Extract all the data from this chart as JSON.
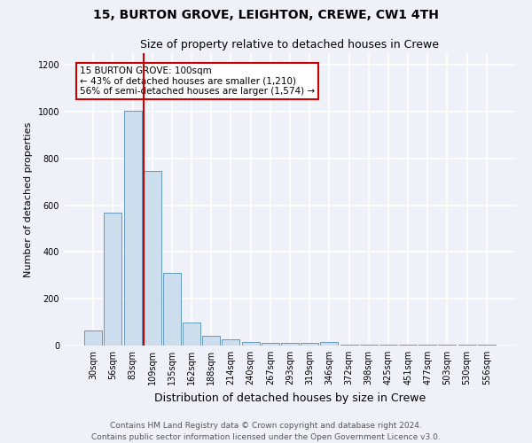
{
  "title1": "15, BURTON GROVE, LEIGHTON, CREWE, CW1 4TH",
  "title2": "Size of property relative to detached houses in Crewe",
  "xlabel": "Distribution of detached houses by size in Crewe",
  "ylabel": "Number of detached properties",
  "categories": [
    "30sqm",
    "56sqm",
    "83sqm",
    "109sqm",
    "135sqm",
    "162sqm",
    "188sqm",
    "214sqm",
    "240sqm",
    "267sqm",
    "293sqm",
    "319sqm",
    "346sqm",
    "372sqm",
    "398sqm",
    "425sqm",
    "451sqm",
    "477sqm",
    "503sqm",
    "530sqm",
    "556sqm"
  ],
  "values": [
    65,
    570,
    1005,
    745,
    310,
    100,
    40,
    25,
    15,
    10,
    10,
    10,
    15,
    5,
    5,
    5,
    5,
    5,
    5,
    5,
    5
  ],
  "bar_color": "#ccdded",
  "bar_edge_color": "#6699bb",
  "red_line_index": 3,
  "marker_color": "#cc0000",
  "annotation_text": "15 BURTON GROVE: 100sqm\n← 43% of detached houses are smaller (1,210)\n56% of semi-detached houses are larger (1,574) →",
  "annotation_box_color": "#ffffff",
  "annotation_box_edge": "#cc0000",
  "ylim": [
    0,
    1250
  ],
  "yticks": [
    0,
    200,
    400,
    600,
    800,
    1000,
    1200
  ],
  "footer": "Contains HM Land Registry data © Crown copyright and database right 2024.\nContains public sector information licensed under the Open Government Licence v3.0.",
  "bg_color": "#eef2f8",
  "grid_color": "#ffffff",
  "title1_fontsize": 10,
  "title2_fontsize": 9,
  "xlabel_fontsize": 9,
  "ylabel_fontsize": 8,
  "tick_fontsize": 7,
  "annotation_fontsize": 7.5,
  "footer_fontsize": 6.5
}
